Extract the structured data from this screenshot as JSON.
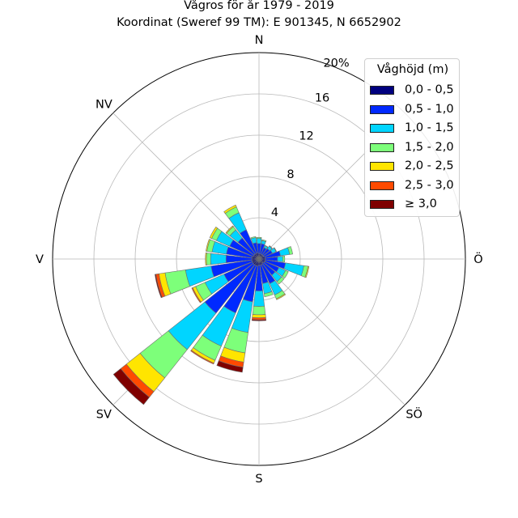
{
  "title": {
    "line1": "Vågros för år 1979 - 2019",
    "line2": "Koordinat (Sweref 99 TM): E 901345, N 6652902"
  },
  "legend": {
    "title": "Våghöjd (m)",
    "position": "top-right",
    "items": [
      {
        "label": "0,0 - 0,5",
        "color": "#00007f"
      },
      {
        "label": "0,5 - 1,0",
        "color": "#0029ff"
      },
      {
        "label": "1,0 - 1,5",
        "color": "#00d5ff"
      },
      {
        "label": "1,5 - 2,0",
        "color": "#7dff7a"
      },
      {
        "label": "2,0 - 2,5",
        "color": "#ffe500"
      },
      {
        "label": "2,5 - 3,0",
        "color": "#ff4a00"
      },
      {
        "label": "≥ 3,0",
        "color": "#7f0000"
      }
    ]
  },
  "chart_data": {
    "type": "windrose",
    "title": "Vågros för år 1979 - 2019",
    "subtitle": "Koordinat (Sweref 99 TM): E 901345, N 6652902",
    "direction_labels": [
      {
        "label": "N",
        "angle_deg": 0
      },
      {
        "label": "NV",
        "angle_deg": 315
      },
      {
        "label": "V",
        "angle_deg": 270
      },
      {
        "label": "SV",
        "angle_deg": 225
      },
      {
        "label": "S",
        "angle_deg": 180
      },
      {
        "label": "SÖ",
        "angle_deg": 135
      },
      {
        "label": "Ö",
        "angle_deg": 90
      }
    ],
    "radial_ticks": [
      {
        "value": 4,
        "label": "4"
      },
      {
        "value": 8,
        "label": "8"
      },
      {
        "value": 12,
        "label": "12"
      },
      {
        "value": 16,
        "label": "16"
      },
      {
        "value": 20,
        "label": "20%"
      }
    ],
    "rmax": 20,
    "sector_width_deg": 15,
    "grid": true,
    "bins": [
      "0,0 - 0,5",
      "0,5 - 1,0",
      "1,0 - 1,5",
      "1,5 - 2,0",
      "2,0 - 2,5",
      "2,5 - 3,0",
      "≥ 3,0"
    ],
    "colors": [
      "#00007f",
      "#0029ff",
      "#00d5ff",
      "#7dff7a",
      "#ffe500",
      "#ff4a00",
      "#7f0000"
    ],
    "sectors": [
      {
        "direction_deg": 0,
        "values": [
          0.5,
          1.0,
          0.5,
          0.1,
          0,
          0,
          0
        ]
      },
      {
        "direction_deg": 15,
        "values": [
          0.5,
          1.0,
          0.3,
          0.1,
          0,
          0,
          0
        ]
      },
      {
        "direction_deg": 30,
        "values": [
          0.5,
          0.7,
          0.2,
          0.05,
          0,
          0,
          0
        ]
      },
      {
        "direction_deg": 45,
        "values": [
          0.5,
          0.8,
          0.3,
          0.05,
          0,
          0,
          0
        ]
      },
      {
        "direction_deg": 60,
        "values": [
          0.5,
          0.9,
          0.4,
          0.05,
          0,
          0,
          0
        ]
      },
      {
        "direction_deg": 75,
        "values": [
          0.6,
          1.5,
          0.9,
          0.3,
          0,
          0,
          0
        ]
      },
      {
        "direction_deg": 90,
        "values": [
          0.6,
          1.2,
          0.5,
          0.2,
          0,
          0,
          0
        ]
      },
      {
        "direction_deg": 105,
        "values": [
          0.6,
          2.0,
          1.8,
          0.4,
          0.1,
          0,
          0
        ]
      },
      {
        "direction_deg": 120,
        "values": [
          0.6,
          1.5,
          0.7,
          0.3,
          0,
          0,
          0
        ]
      },
      {
        "direction_deg": 135,
        "values": [
          0.5,
          1.5,
          0.8,
          0.3,
          0,
          0,
          0
        ]
      },
      {
        "direction_deg": 150,
        "values": [
          0.6,
          2.0,
          1.2,
          0.4,
          0.1,
          0,
          0
        ]
      },
      {
        "direction_deg": 165,
        "values": [
          0.6,
          1.8,
          1.0,
          0.3,
          0,
          0,
          0
        ]
      },
      {
        "direction_deg": 180,
        "values": [
          0.6,
          2.5,
          1.5,
          0.8,
          0.3,
          0.2,
          0.1
        ]
      },
      {
        "direction_deg": 195,
        "values": [
          0.7,
          3.5,
          3.0,
          2.0,
          0.9,
          0.5,
          0.5
        ]
      },
      {
        "direction_deg": 210,
        "values": [
          0.7,
          5.0,
          3.5,
          1.5,
          0.3,
          0.1,
          0
        ]
      },
      {
        "direction_deg": 225,
        "values": [
          0.7,
          6.0,
          4.5,
          3.5,
          1.7,
          0.7,
          0.9
        ]
      },
      {
        "direction_deg": 240,
        "values": [
          0.7,
          3.0,
          2.0,
          1.0,
          0.3,
          0.1,
          0
        ]
      },
      {
        "direction_deg": 255,
        "values": [
          0.7,
          4.0,
          2.5,
          2.0,
          0.6,
          0.3,
          0.1
        ]
      },
      {
        "direction_deg": 270,
        "values": [
          0.7,
          2.5,
          1.5,
          0.4,
          0.1,
          0,
          0
        ]
      },
      {
        "direction_deg": 285,
        "values": [
          0.7,
          2.5,
          1.4,
          0.5,
          0.1,
          0,
          0
        ]
      },
      {
        "direction_deg": 300,
        "values": [
          0.6,
          2.5,
          1.4,
          0.5,
          0.2,
          0,
          0
        ]
      },
      {
        "direction_deg": 315,
        "values": [
          0.6,
          2.0,
          1.0,
          0.4,
          0.1,
          0,
          0
        ]
      },
      {
        "direction_deg": 330,
        "values": [
          0.6,
          2.5,
          1.8,
          0.6,
          0.2,
          0,
          0
        ]
      },
      {
        "direction_deg": 345,
        "values": [
          0.6,
          1.0,
          0.5,
          0.1,
          0,
          0,
          0
        ]
      }
    ]
  }
}
